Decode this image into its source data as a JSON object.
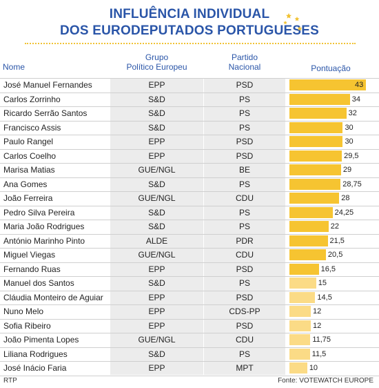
{
  "title_line1": "INFLUÊNCIA INDIVIDUAL",
  "title_line2": "DOS EURODEPUTADOS PORTUGUESES",
  "headers": {
    "nome": "Nome",
    "grupo_line1": "Grupo",
    "grupo_line2": "Político Europeu",
    "partido_line1": "Partido",
    "partido_line2": "Nacional",
    "pontuacao": "Pontuação"
  },
  "footer": {
    "left": "RTP",
    "right": "Fonte: VOTEWATCH EUROPE"
  },
  "colors": {
    "title": "#2a55a8",
    "bar_strong": "#f6c431",
    "bar_light": "#fbdb86",
    "stars": "#f1c232"
  },
  "chart_data": {
    "type": "table",
    "title": "INFLUÊNCIA INDIVIDUAL DOS EURODEPUTADOS PORTUGUESES",
    "value_max": 43,
    "rows": [
      {
        "nome": "José Manuel Fernandes",
        "grupo": "EPP",
        "partido": "PSD",
        "valor": 43,
        "label": "43"
      },
      {
        "nome": "Carlos Zorrinho",
        "grupo": "S&D",
        "partido": "PS",
        "valor": 34,
        "label": "34"
      },
      {
        "nome": "Ricardo Serrão Santos",
        "grupo": "S&D",
        "partido": "PS",
        "valor": 32,
        "label": "32"
      },
      {
        "nome": "Francisco Assis",
        "grupo": "S&D",
        "partido": "PS",
        "valor": 30,
        "label": "30"
      },
      {
        "nome": "Paulo Rangel",
        "grupo": "EPP",
        "partido": "PSD",
        "valor": 30,
        "label": "30"
      },
      {
        "nome": "Carlos Coelho",
        "grupo": "EPP",
        "partido": "PSD",
        "valor": 29.5,
        "label": "29,5"
      },
      {
        "nome": "Marisa Matias",
        "grupo": "GUE/NGL",
        "partido": "BE",
        "valor": 29,
        "label": "29"
      },
      {
        "nome": "Ana Gomes",
        "grupo": "S&D",
        "partido": "PS",
        "valor": 28.75,
        "label": "28,75"
      },
      {
        "nome": "João Ferreira",
        "grupo": "GUE/NGL",
        "partido": "CDU",
        "valor": 28,
        "label": "28"
      },
      {
        "nome": "Pedro Silva Pereira",
        "grupo": "S&D",
        "partido": "PS",
        "valor": 24.25,
        "label": "24,25"
      },
      {
        "nome": "Maria João Rodrigues",
        "grupo": "S&D",
        "partido": "PS",
        "valor": 22,
        "label": "22"
      },
      {
        "nome": "António Marinho Pinto",
        "grupo": "ALDE",
        "partido": "PDR",
        "valor": 21.5,
        "label": "21,5"
      },
      {
        "nome": "Miguel Viegas",
        "grupo": "GUE/NGL",
        "partido": "CDU",
        "valor": 20.5,
        "label": "20,5"
      },
      {
        "nome": "Fernando Ruas",
        "grupo": "EPP",
        "partido": "PSD",
        "valor": 16.5,
        "label": "16,5"
      },
      {
        "nome": "Manuel dos Santos",
        "grupo": "S&D",
        "partido": "PS",
        "valor": 15,
        "label": "15"
      },
      {
        "nome": "Cláudia Monteiro de Aguiar",
        "grupo": "EPP",
        "partido": "PSD",
        "valor": 14.5,
        "label": "14,5"
      },
      {
        "nome": "Nuno Melo",
        "grupo": "EPP",
        "partido": "CDS-PP",
        "valor": 12,
        "label": "12"
      },
      {
        "nome": "Sofia Ribeiro",
        "grupo": "EPP",
        "partido": "PSD",
        "valor": 12,
        "label": "12"
      },
      {
        "nome": "João Pimenta Lopes",
        "grupo": "GUE/NGL",
        "partido": "CDU",
        "valor": 11.75,
        "label": "11,75"
      },
      {
        "nome": "Liliana Rodrigues",
        "grupo": "S&D",
        "partido": "PS",
        "valor": 11.5,
        "label": "11,5"
      },
      {
        "nome": "José Inácio Faria",
        "grupo": "EPP",
        "partido": "MPT",
        "valor": 10,
        "label": "10"
      }
    ]
  }
}
